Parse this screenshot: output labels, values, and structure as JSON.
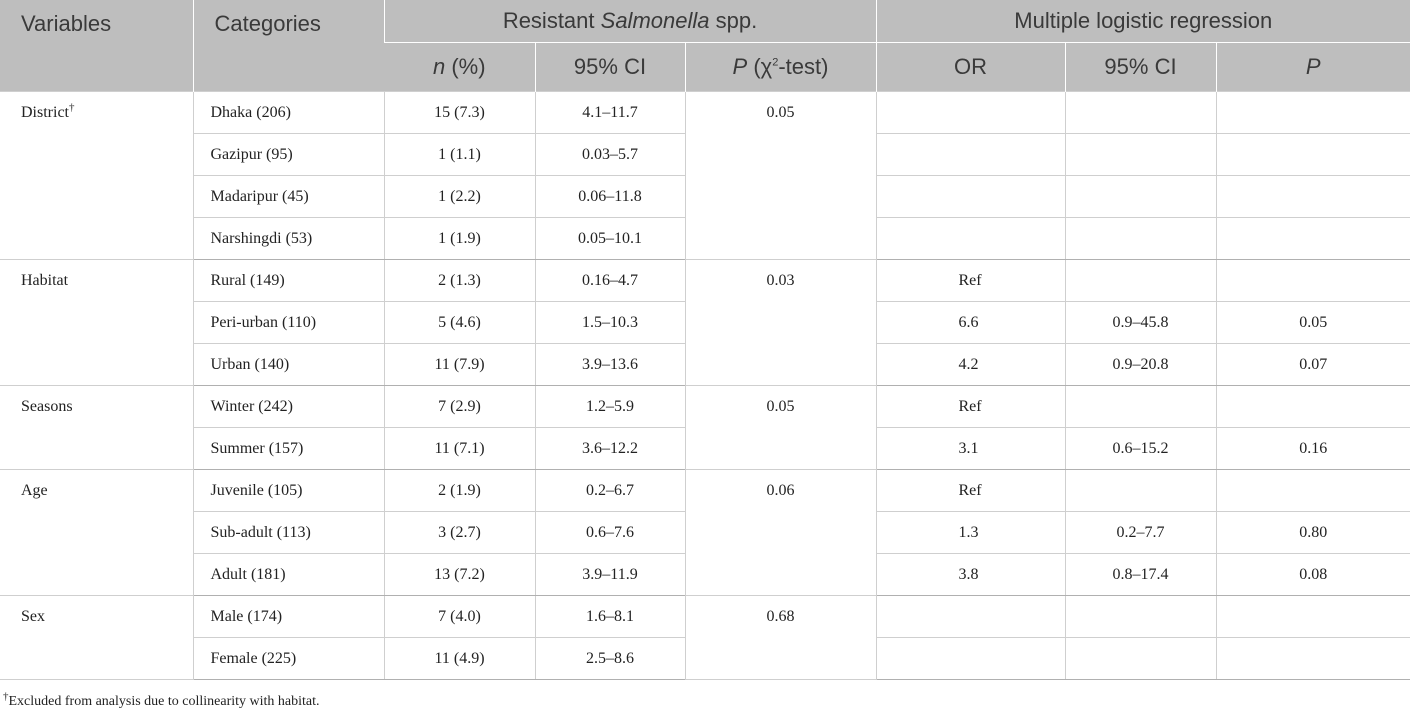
{
  "header": {
    "variables": "Variables",
    "categories": "Categories",
    "resistant_prefix": "Resistant ",
    "resistant_italic": "Salmonella",
    "resistant_suffix": " spp.",
    "mlr": "Multiple logistic regression",
    "n_italic": "n",
    "n_rest": " (%)",
    "ci": "95% CI",
    "p_italic": "P",
    "p_chi_prefix": " (χ",
    "p_chi_sup": "2",
    "p_chi_suffix": "-test)",
    "or": "OR",
    "ci2": "95% CI",
    "p2": "P"
  },
  "groups": [
    {
      "variable": "District",
      "variable_sup": "†",
      "p_chi": "0.05",
      "rows": [
        {
          "category": "Dhaka (206)",
          "n_pct": "15 (7.3)",
          "ci": "4.1–11.7",
          "or": "",
          "or_ci": "",
          "p": ""
        },
        {
          "category": "Gazipur (95)",
          "n_pct": "1 (1.1)",
          "ci": "0.03–5.7",
          "or": "",
          "or_ci": "",
          "p": ""
        },
        {
          "category": "Madaripur (45)",
          "n_pct": "1 (2.2)",
          "ci": "0.06–11.8",
          "or": "",
          "or_ci": "",
          "p": ""
        },
        {
          "category": "Narshingdi (53)",
          "n_pct": "1 (1.9)",
          "ci": "0.05–10.1",
          "or": "",
          "or_ci": "",
          "p": ""
        }
      ]
    },
    {
      "variable": "Habitat",
      "variable_sup": "",
      "p_chi": "0.03",
      "rows": [
        {
          "category": "Rural (149)",
          "n_pct": "2 (1.3)",
          "ci": "0.16–4.7",
          "or": "Ref",
          "or_ci": "",
          "p": ""
        },
        {
          "category": "Peri-urban (110)",
          "n_pct": "5 (4.6)",
          "ci": "1.5–10.3",
          "or": "6.6",
          "or_ci": "0.9–45.8",
          "p": "0.05"
        },
        {
          "category": "Urban (140)",
          "n_pct": "11 (7.9)",
          "ci": "3.9–13.6",
          "or": "4.2",
          "or_ci": "0.9–20.8",
          "p": "0.07"
        }
      ]
    },
    {
      "variable": "Seasons",
      "variable_sup": "",
      "p_chi": "0.05",
      "rows": [
        {
          "category": "Winter (242)",
          "n_pct": "7 (2.9)",
          "ci": "1.2–5.9",
          "or": "Ref",
          "or_ci": "",
          "p": ""
        },
        {
          "category": "Summer (157)",
          "n_pct": "11 (7.1)",
          "ci": "3.6–12.2",
          "or": "3.1",
          "or_ci": "0.6–15.2",
          "p": "0.16"
        }
      ]
    },
    {
      "variable": "Age",
      "variable_sup": "",
      "p_chi": "0.06",
      "rows": [
        {
          "category": "Juvenile (105)",
          "n_pct": "2 (1.9)",
          "ci": "0.2–6.7",
          "or": "Ref",
          "or_ci": "",
          "p": ""
        },
        {
          "category": "Sub-adult (113)",
          "n_pct": "3 (2.7)",
          "ci": "0.6–7.6",
          "or": "1.3",
          "or_ci": "0.2–7.7",
          "p": "0.80"
        },
        {
          "category": "Adult (181)",
          "n_pct": "13 (7.2)",
          "ci": "3.9–11.9",
          "or": "3.8",
          "or_ci": "0.8–17.4",
          "p": "0.08"
        }
      ]
    },
    {
      "variable": "Sex",
      "variable_sup": "",
      "p_chi": "0.68",
      "rows": [
        {
          "category": "Male (174)",
          "n_pct": "7 (4.0)",
          "ci": "1.6–8.1",
          "or": "",
          "or_ci": "",
          "p": ""
        },
        {
          "category": "Female (225)",
          "n_pct": "11 (4.9)",
          "ci": "2.5–8.6",
          "or": "",
          "or_ci": "",
          "p": ""
        }
      ]
    }
  ],
  "footnote": {
    "mark": "†",
    "text": "Excluded from analysis due to collinearity with habitat."
  }
}
